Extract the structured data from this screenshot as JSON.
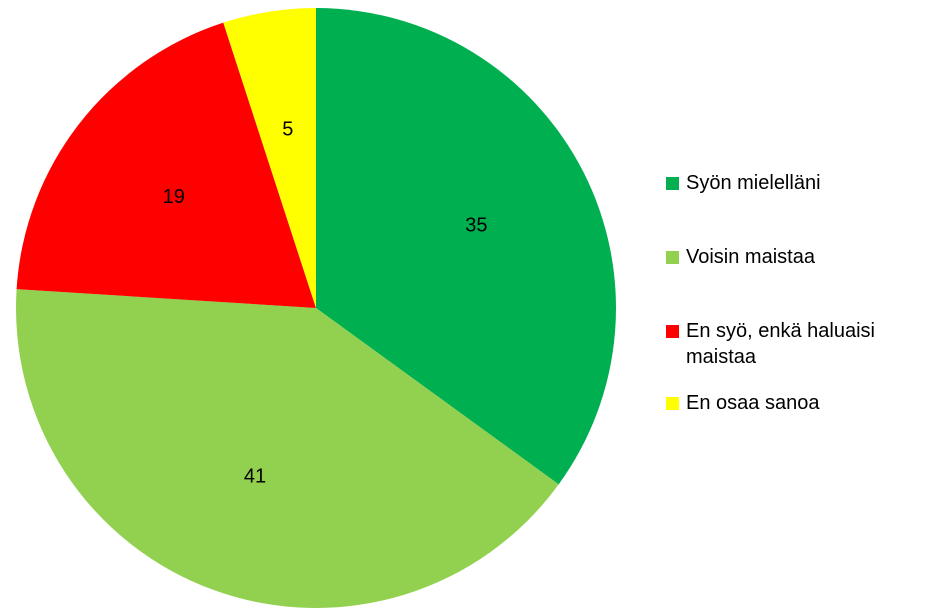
{
  "chart_data": {
    "type": "pie",
    "categories": [
      "Syön mielelläni",
      "Voisin maistaa",
      "En syö, enkä haluaisi maistaa",
      "En osaa sanoa"
    ],
    "values": [
      35,
      41,
      19,
      5
    ],
    "colors": [
      "#00b050",
      "#92d050",
      "#ff0000",
      "#ffff00"
    ],
    "legend": "right"
  }
}
